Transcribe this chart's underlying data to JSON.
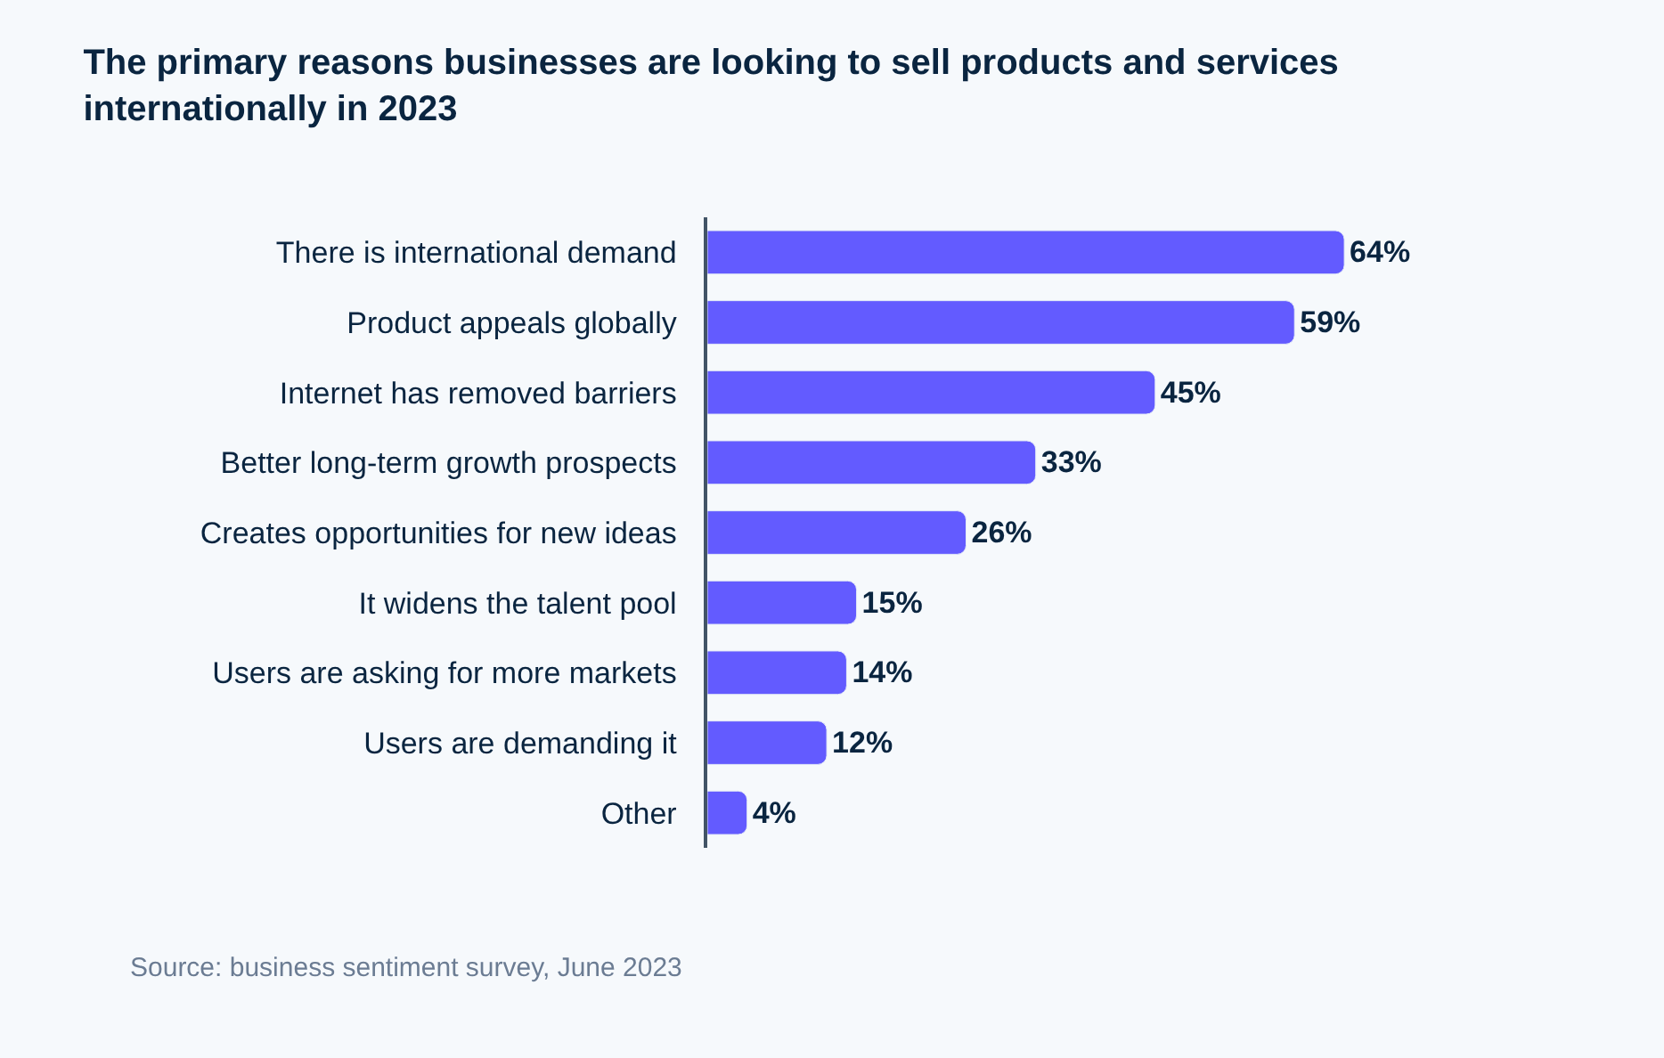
{
  "chart_data": {
    "type": "bar",
    "orientation": "horizontal",
    "title": "The primary reasons businesses are looking to sell products and services internationally in 2023",
    "categories": [
      "There is international demand",
      "Product appeals globally",
      "Internet has removed barriers",
      "Better long-term growth prospects",
      "Creates opportunities for new ideas",
      "It widens the talent pool",
      "Users are asking for more markets",
      "Users are demanding it",
      "Other"
    ],
    "values": [
      64,
      59,
      45,
      33,
      26,
      15,
      14,
      12,
      4
    ],
    "value_labels": [
      "64%",
      "59%",
      "45%",
      "33%",
      "26%",
      "15%",
      "14%",
      "12%",
      "4%"
    ],
    "color": "#635bff",
    "tick_labels": "y",
    "grid": false,
    "legend": false,
    "annotations": [
      "Source: business sentiment survey, June 2023"
    ]
  }
}
